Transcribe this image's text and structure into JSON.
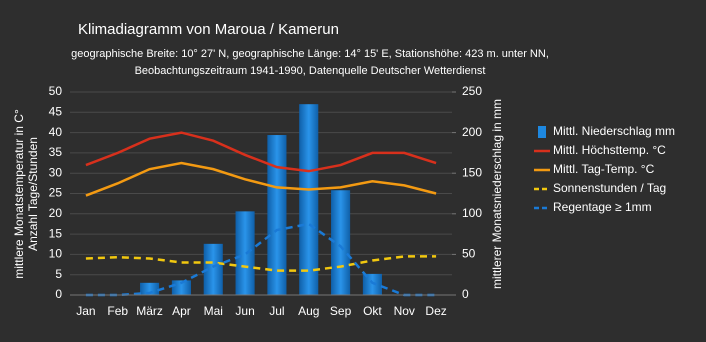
{
  "chart_data": {
    "type": "combo",
    "title": "Klimadiagramm von Maroua / Kamerun",
    "subtitle": [
      "geographische Breite: 10° 27' N, geographische Länge: 14° 15' E, Stationshöhe: 423 m. unter NN,",
      "Beobachtungszeitraum 1941-1990, Datenquelle Deutscher Wetterdienst"
    ],
    "ylabel": [
      "mittlere Monatstemperatur in C°",
      "Anzahl Tage/Stunden"
    ],
    "y2label": "mittlerer Monatsniederschlag in mm",
    "categories": [
      "Jan",
      "Feb",
      "März",
      "Apr",
      "Mai",
      "Jun",
      "Jul",
      "Aug",
      "Sep",
      "Okt",
      "Nov",
      "Dez"
    ],
    "ylim": [
      0,
      50
    ],
    "yticks": [
      0,
      5,
      10,
      15,
      20,
      25,
      30,
      35,
      40,
      45,
      50
    ],
    "y2lim": [
      0,
      250
    ],
    "y2ticks": [
      0,
      50,
      100,
      150,
      200,
      250
    ],
    "grid": true,
    "legend": "right",
    "series": [
      {
        "name": "Mittl. Niederschlag mm",
        "type": "bar",
        "axis": "y2",
        "color": "#1e88e0",
        "values": [
          0,
          0,
          15,
          18,
          63,
          103,
          197,
          235,
          129,
          26,
          0,
          0
        ]
      },
      {
        "name": "Mittl. Höchsttemp. °C",
        "type": "line",
        "style": "solid",
        "color": "#d8301c",
        "values": [
          32,
          35,
          38.5,
          40,
          38,
          34.5,
          31.5,
          30.5,
          32,
          35,
          35,
          32.5
        ]
      },
      {
        "name": "Mittl. Tag-Temp. °C",
        "type": "line",
        "style": "solid",
        "color": "#f39a12",
        "values": [
          24.5,
          27.5,
          31,
          32.5,
          31,
          28.5,
          26.5,
          26,
          26.5,
          28,
          27,
          25
        ]
      },
      {
        "name": "Sonnenstunden / Tag",
        "type": "line",
        "style": "dashed",
        "color": "#f2c80f",
        "values": [
          9,
          9.3,
          9,
          8,
          8,
          7,
          6,
          6,
          7,
          8.5,
          9.5,
          9.5
        ]
      },
      {
        "name": "Regentage ≥ 1mm",
        "type": "line",
        "style": "dashed",
        "color": "#1a7ad6",
        "values": [
          0,
          0,
          0.5,
          3,
          7,
          10,
          16,
          17.5,
          12,
          3,
          0,
          0
        ]
      }
    ]
  }
}
